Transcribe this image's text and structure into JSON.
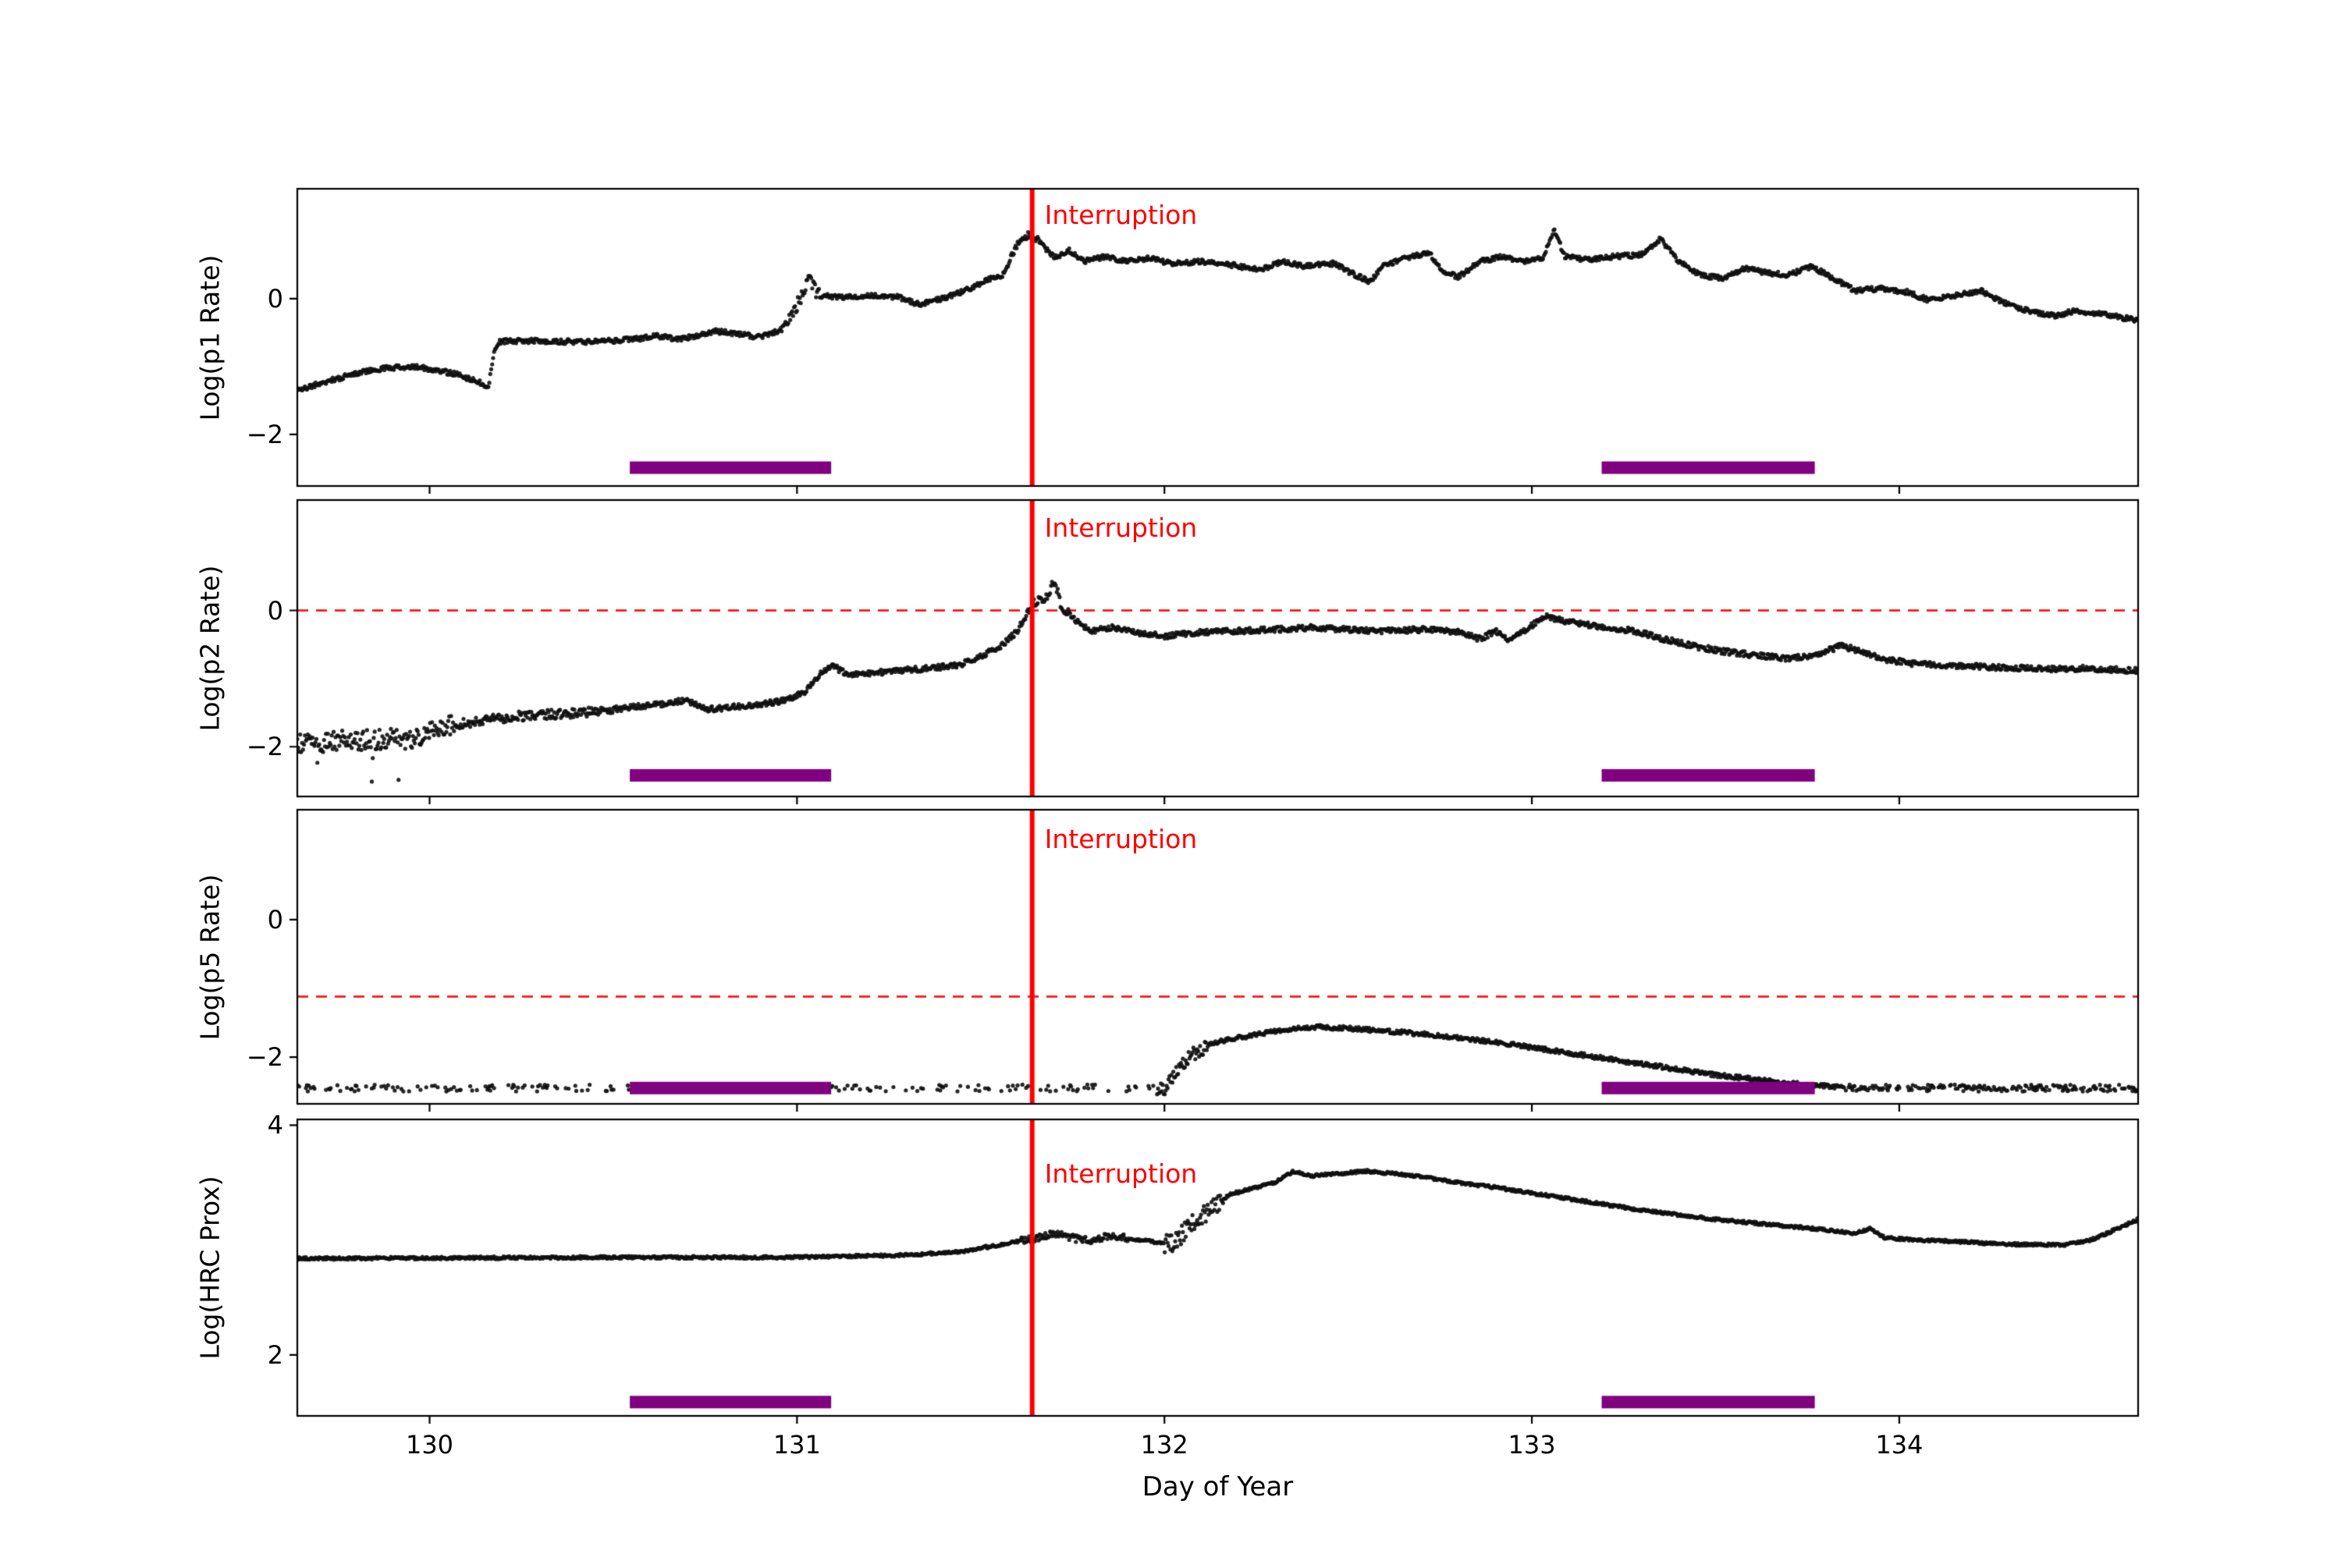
{
  "figure": {
    "background": "#ffffff",
    "colors": {
      "point": "#111111",
      "interruption_line": "#ff0000",
      "threshold_line": "#ff0000",
      "radzone_bar": "#800080",
      "axis": "#000000"
    }
  },
  "chart_data": {
    "type": "scatter",
    "xlabel": "Day of Year",
    "xlim": [
      129.64,
      134.65
    ],
    "xticks": [
      130,
      131,
      132,
      133,
      134
    ],
    "xtick_labels": [
      "130",
      "131",
      "132",
      "133",
      "134"
    ],
    "vline_x": 131.64,
    "vline_label": "Interruption",
    "bars_x": [
      [
        130.545,
        131.093
      ],
      [
        133.19,
        133.77
      ]
    ],
    "panels": [
      {
        "ylabel": "Log(p1 Rate)",
        "ylim": [
          -2.76,
          1.62
        ],
        "yticks": [
          [
            0,
            "0"
          ],
          [
            -2,
            "−2"
          ]
        ],
        "hline": null,
        "bars_y": -2.49,
        "noise": 0.035,
        "regions": [
          {
            "x0": 130.96,
            "x1": 131.06,
            "noise": 0.1
          },
          {
            "x0": 131.56,
            "x1": 131.66,
            "noise": 0.05
          }
        ],
        "series": [
          [
            129.64,
            -1.35
          ],
          [
            129.72,
            -1.22
          ],
          [
            129.8,
            -1.1
          ],
          [
            129.88,
            -1.02
          ],
          [
            129.96,
            -1.0
          ],
          [
            130.02,
            -1.05
          ],
          [
            130.08,
            -1.12
          ],
          [
            130.13,
            -1.22
          ],
          [
            130.16,
            -1.3
          ],
          [
            130.175,
            -0.8
          ],
          [
            130.19,
            -0.63
          ],
          [
            130.3,
            -0.62
          ],
          [
            130.42,
            -0.64
          ],
          [
            130.55,
            -0.6
          ],
          [
            130.62,
            -0.55
          ],
          [
            130.68,
            -0.6
          ],
          [
            130.78,
            -0.48
          ],
          [
            130.84,
            -0.52
          ],
          [
            130.9,
            -0.57
          ],
          [
            130.96,
            -0.45
          ],
          [
            131.0,
            -0.1
          ],
          [
            131.03,
            0.28
          ],
          [
            131.06,
            0.05
          ],
          [
            131.12,
            0.02
          ],
          [
            131.2,
            0.05
          ],
          [
            131.28,
            0.02
          ],
          [
            131.33,
            -0.08
          ],
          [
            131.38,
            -0.02
          ],
          [
            131.45,
            0.1
          ],
          [
            131.52,
            0.28
          ],
          [
            131.56,
            0.35
          ],
          [
            131.6,
            0.8
          ],
          [
            131.63,
            0.95
          ],
          [
            131.66,
            0.85
          ],
          [
            131.7,
            0.6
          ],
          [
            131.74,
            0.72
          ],
          [
            131.78,
            0.55
          ],
          [
            131.84,
            0.62
          ],
          [
            131.9,
            0.55
          ],
          [
            131.96,
            0.6
          ],
          [
            132.02,
            0.52
          ],
          [
            132.1,
            0.55
          ],
          [
            132.18,
            0.5
          ],
          [
            132.26,
            0.42
          ],
          [
            132.32,
            0.55
          ],
          [
            132.38,
            0.48
          ],
          [
            132.46,
            0.52
          ],
          [
            132.52,
            0.35
          ],
          [
            132.56,
            0.25
          ],
          [
            132.6,
            0.5
          ],
          [
            132.66,
            0.6
          ],
          [
            132.72,
            0.68
          ],
          [
            132.76,
            0.4
          ],
          [
            132.8,
            0.32
          ],
          [
            132.86,
            0.55
          ],
          [
            132.92,
            0.62
          ],
          [
            132.98,
            0.55
          ],
          [
            133.03,
            0.6
          ],
          [
            133.06,
            1.02
          ],
          [
            133.09,
            0.62
          ],
          [
            133.15,
            0.58
          ],
          [
            133.22,
            0.62
          ],
          [
            133.3,
            0.65
          ],
          [
            133.35,
            0.88
          ],
          [
            133.4,
            0.55
          ],
          [
            133.46,
            0.35
          ],
          [
            133.52,
            0.3
          ],
          [
            133.58,
            0.45
          ],
          [
            133.64,
            0.38
          ],
          [
            133.7,
            0.35
          ],
          [
            133.76,
            0.48
          ],
          [
            133.82,
            0.3
          ],
          [
            133.88,
            0.12
          ],
          [
            133.95,
            0.15
          ],
          [
            134.02,
            0.1
          ],
          [
            134.08,
            -0.02
          ],
          [
            134.15,
            0.05
          ],
          [
            134.22,
            0.12
          ],
          [
            134.28,
            -0.05
          ],
          [
            134.35,
            -0.18
          ],
          [
            134.42,
            -0.25
          ],
          [
            134.48,
            -0.18
          ],
          [
            134.55,
            -0.22
          ],
          [
            134.65,
            -0.32
          ]
        ]
      },
      {
        "ylabel": "Log(p2 Rate)",
        "ylim": [
          -2.73,
          1.62
        ],
        "yticks": [
          [
            0,
            "0"
          ],
          [
            -2,
            "−2"
          ]
        ],
        "hline": 0,
        "bars_y": -2.42,
        "noise": 0.04,
        "regions": [
          {
            "x0": 129.64,
            "x1": 130.08,
            "noise": 0.15,
            "outlier": 0.1,
            "outlier_amp": 0.5
          },
          {
            "x0": 130.08,
            "x1": 130.5,
            "noise": 0.07
          },
          {
            "x0": 131.62,
            "x1": 131.74,
            "noise": 0.06
          }
        ],
        "series": [
          [
            129.64,
            -1.95
          ],
          [
            129.8,
            -1.9
          ],
          [
            129.95,
            -1.88
          ],
          [
            130.05,
            -1.7
          ],
          [
            130.15,
            -1.6
          ],
          [
            130.25,
            -1.55
          ],
          [
            130.35,
            -1.52
          ],
          [
            130.45,
            -1.48
          ],
          [
            130.55,
            -1.42
          ],
          [
            130.62,
            -1.38
          ],
          [
            130.7,
            -1.32
          ],
          [
            130.76,
            -1.45
          ],
          [
            130.82,
            -1.42
          ],
          [
            130.9,
            -1.38
          ],
          [
            130.97,
            -1.32
          ],
          [
            131.02,
            -1.2
          ],
          [
            131.07,
            -0.88
          ],
          [
            131.1,
            -0.82
          ],
          [
            131.14,
            -0.95
          ],
          [
            131.2,
            -0.92
          ],
          [
            131.28,
            -0.88
          ],
          [
            131.36,
            -0.85
          ],
          [
            131.44,
            -0.8
          ],
          [
            131.5,
            -0.68
          ],
          [
            131.56,
            -0.5
          ],
          [
            131.6,
            -0.3
          ],
          [
            131.64,
            0.1
          ],
          [
            131.68,
            0.2
          ],
          [
            131.7,
            0.45
          ],
          [
            131.72,
            0.05
          ],
          [
            131.76,
            -0.15
          ],
          [
            131.8,
            -0.3
          ],
          [
            131.86,
            -0.25
          ],
          [
            131.92,
            -0.32
          ],
          [
            132.0,
            -0.38
          ],
          [
            132.1,
            -0.32
          ],
          [
            132.2,
            -0.3
          ],
          [
            132.3,
            -0.28
          ],
          [
            132.4,
            -0.25
          ],
          [
            132.5,
            -0.28
          ],
          [
            132.6,
            -0.3
          ],
          [
            132.7,
            -0.28
          ],
          [
            132.8,
            -0.32
          ],
          [
            132.86,
            -0.42
          ],
          [
            132.9,
            -0.3
          ],
          [
            132.94,
            -0.45
          ],
          [
            133.0,
            -0.22
          ],
          [
            133.04,
            -0.08
          ],
          [
            133.08,
            -0.15
          ],
          [
            133.14,
            -0.2
          ],
          [
            133.2,
            -0.25
          ],
          [
            133.28,
            -0.3
          ],
          [
            133.36,
            -0.42
          ],
          [
            133.44,
            -0.52
          ],
          [
            133.52,
            -0.6
          ],
          [
            133.6,
            -0.65
          ],
          [
            133.68,
            -0.7
          ],
          [
            133.76,
            -0.68
          ],
          [
            133.84,
            -0.52
          ],
          [
            133.9,
            -0.6
          ],
          [
            133.96,
            -0.72
          ],
          [
            134.04,
            -0.78
          ],
          [
            134.12,
            -0.8
          ],
          [
            134.2,
            -0.82
          ],
          [
            134.3,
            -0.84
          ],
          [
            134.4,
            -0.86
          ],
          [
            134.5,
            -0.85
          ],
          [
            134.65,
            -0.88
          ]
        ]
      },
      {
        "ylabel": "Log(p5 Rate)",
        "ylim": [
          -2.68,
          1.6
        ],
        "yticks": [
          [
            0,
            "0"
          ],
          [
            -2,
            "−2"
          ]
        ],
        "hline": -1.12,
        "bars_y": -2.45,
        "noise": 0.03,
        "regions": [
          {
            "x0": 129.64,
            "x1": 131.98,
            "noise": 0.05,
            "density": 0.22
          },
          {
            "x0": 131.98,
            "x1": 132.12,
            "noise": 0.1
          },
          {
            "x0": 133.85,
            "x1": 134.65,
            "noise": 0.05,
            "density": 0.6
          }
        ],
        "series": [
          [
            129.64,
            -2.45
          ],
          [
            132.0,
            -2.45
          ],
          [
            132.04,
            -2.15
          ],
          [
            132.08,
            -1.95
          ],
          [
            132.12,
            -1.82
          ],
          [
            132.16,
            -1.76
          ],
          [
            132.22,
            -1.7
          ],
          [
            132.3,
            -1.62
          ],
          [
            132.4,
            -1.56
          ],
          [
            132.5,
            -1.58
          ],
          [
            132.6,
            -1.62
          ],
          [
            132.7,
            -1.66
          ],
          [
            132.8,
            -1.72
          ],
          [
            132.9,
            -1.78
          ],
          [
            133.0,
            -1.86
          ],
          [
            133.1,
            -1.94
          ],
          [
            133.2,
            -2.02
          ],
          [
            133.3,
            -2.1
          ],
          [
            133.4,
            -2.18
          ],
          [
            133.5,
            -2.26
          ],
          [
            133.6,
            -2.32
          ],
          [
            133.7,
            -2.38
          ],
          [
            133.8,
            -2.42
          ],
          [
            133.9,
            -2.45
          ],
          [
            134.65,
            -2.45
          ]
        ]
      },
      {
        "ylabel": "Log(HRC Prox)",
        "ylim": [
          1.47,
          4.05
        ],
        "yticks": [
          [
            4,
            "4"
          ],
          [
            2,
            "2"
          ]
        ],
        "hline": null,
        "bars_y": 1.59,
        "noise": 0.012,
        "regions": [
          {
            "x0": 131.6,
            "x1": 131.9,
            "noise": 0.03
          },
          {
            "x0": 132.0,
            "x1": 132.16,
            "noise": 0.09
          }
        ],
        "series": [
          [
            129.64,
            2.84
          ],
          [
            130.5,
            2.85
          ],
          [
            131.0,
            2.85
          ],
          [
            131.3,
            2.87
          ],
          [
            131.45,
            2.9
          ],
          [
            131.55,
            2.96
          ],
          [
            131.62,
            3.0
          ],
          [
            131.66,
            3.02
          ],
          [
            131.7,
            3.06
          ],
          [
            131.74,
            3.02
          ],
          [
            131.8,
            3.0
          ],
          [
            131.86,
            3.04
          ],
          [
            131.92,
            3.01
          ],
          [
            131.98,
            2.98
          ],
          [
            132.02,
            2.97
          ],
          [
            132.06,
            3.08
          ],
          [
            132.1,
            3.2
          ],
          [
            132.14,
            3.32
          ],
          [
            132.18,
            3.4
          ],
          [
            132.24,
            3.45
          ],
          [
            132.3,
            3.5
          ],
          [
            132.35,
            3.6
          ],
          [
            132.4,
            3.56
          ],
          [
            132.48,
            3.58
          ],
          [
            132.55,
            3.6
          ],
          [
            132.62,
            3.58
          ],
          [
            132.7,
            3.55
          ],
          [
            132.8,
            3.5
          ],
          [
            132.9,
            3.46
          ],
          [
            133.0,
            3.41
          ],
          [
            133.1,
            3.36
          ],
          [
            133.2,
            3.31
          ],
          [
            133.3,
            3.26
          ],
          [
            133.4,
            3.22
          ],
          [
            133.5,
            3.18
          ],
          [
            133.6,
            3.15
          ],
          [
            133.7,
            3.12
          ],
          [
            133.8,
            3.09
          ],
          [
            133.88,
            3.06
          ],
          [
            133.92,
            3.1
          ],
          [
            133.96,
            3.02
          ],
          [
            134.05,
            3.0
          ],
          [
            134.15,
            2.99
          ],
          [
            134.25,
            2.97
          ],
          [
            134.35,
            2.96
          ],
          [
            134.45,
            2.96
          ],
          [
            134.52,
            3.0
          ],
          [
            134.58,
            3.08
          ],
          [
            134.65,
            3.18
          ]
        ]
      }
    ]
  }
}
